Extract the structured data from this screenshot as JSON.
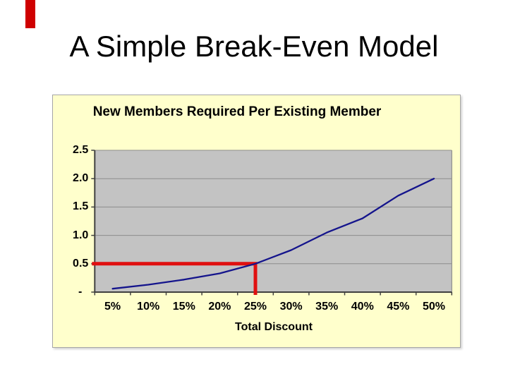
{
  "slide": {
    "title": "A Simple Break-Even Model",
    "accent_bar_color": "#cf0000"
  },
  "chart_data": {
    "type": "line",
    "title": "New Members Required Per Existing Member",
    "xlabel": "Total Discount",
    "ylabel": "",
    "categories": [
      "5%",
      "10%",
      "15%",
      "20%",
      "25%",
      "30%",
      "35%",
      "40%",
      "45%",
      "50%"
    ],
    "series": [
      {
        "name": "New members required per existing member",
        "values": [
          0.06,
          0.13,
          0.22,
          0.33,
          0.5,
          0.74,
          1.05,
          1.3,
          1.7,
          2.0
        ]
      }
    ],
    "y_ticks": [
      {
        "label": "2.5",
        "value": 2.5
      },
      {
        "label": "2.0",
        "value": 2.0
      },
      {
        "label": "1.5",
        "value": 1.5
      },
      {
        "label": "1.0",
        "value": 1.0
      },
      {
        "label": "0.5",
        "value": 0.5
      },
      {
        "label": "-",
        "value": 0
      }
    ],
    "ylim": [
      0,
      2.5
    ],
    "grid": true,
    "legend": "none",
    "annotation": {
      "type": "crosshair",
      "x_category": "25%",
      "y_value": 0.5,
      "color": "#e01010"
    },
    "colors": {
      "line": "#14148c",
      "plot_bg": "#c3c3c3",
      "chart_bg": "#ffffcc",
      "gridline": "#8c8c8c",
      "axis": "#404040",
      "annotation": "#e01010"
    }
  }
}
